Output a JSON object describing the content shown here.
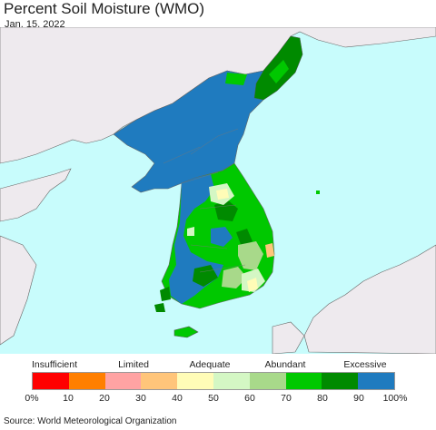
{
  "title": "Percent Soil Moisture (WMO)",
  "date": "Jan. 15, 2022",
  "legend": {
    "categories": [
      "Insufficient",
      "Limited",
      "Adequate",
      "Abundant",
      "Excessive"
    ],
    "colors": [
      "#ff0000",
      "#ff7f00",
      "#ffa3a3",
      "#ffc57a",
      "#fffcb7",
      "#d4f7c4",
      "#a8d98a",
      "#00c800",
      "#008a00",
      "#1f7bbf"
    ],
    "ticks": [
      "0%",
      "10",
      "20",
      "30",
      "40",
      "50",
      "60",
      "70",
      "80",
      "90",
      "100%"
    ]
  },
  "source": "Source: World Meteorological Organization"
}
